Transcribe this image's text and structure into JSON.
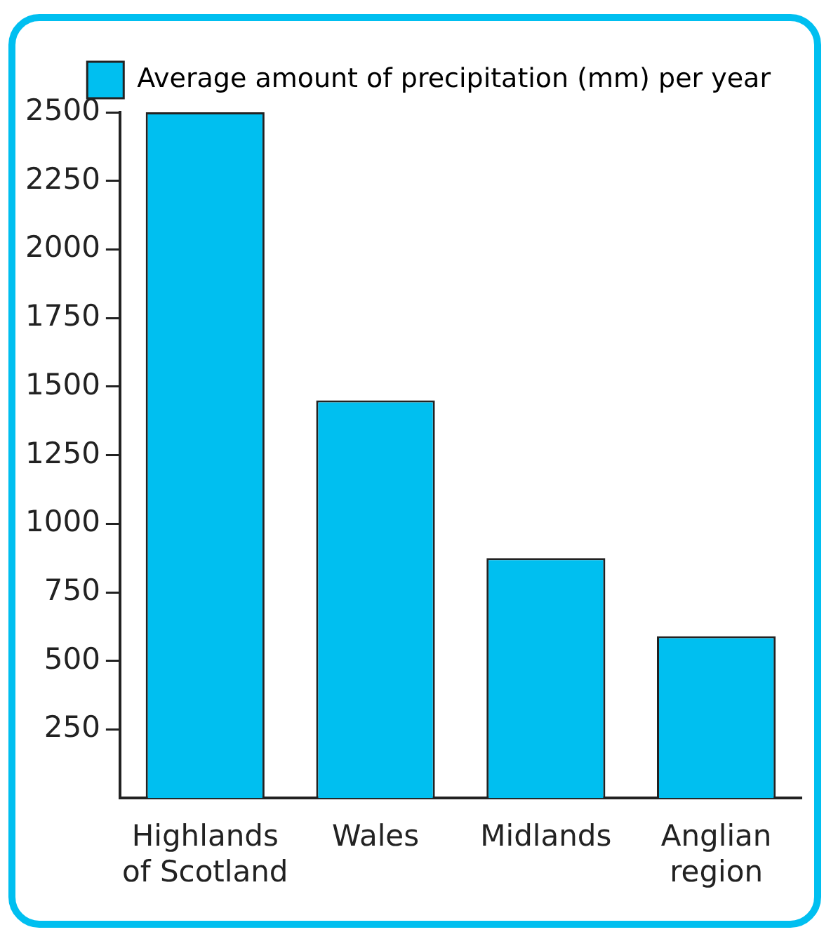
{
  "chart_data": {
    "type": "bar",
    "categories": [
      "Highlands of Scotland",
      "Wales",
      "Midlands",
      "Anglian region"
    ],
    "series": [
      {
        "name": "Average amount of precipitation (mm) per year",
        "color": "#00bff0",
        "values": [
          2500,
          1450,
          875,
          590
        ]
      }
    ],
    "ylim": [
      0,
      2500
    ],
    "yticks": [
      250,
      500,
      750,
      1000,
      1250,
      1500,
      1750,
      2000,
      2250,
      2500
    ],
    "grid": false,
    "legend": "top"
  }
}
